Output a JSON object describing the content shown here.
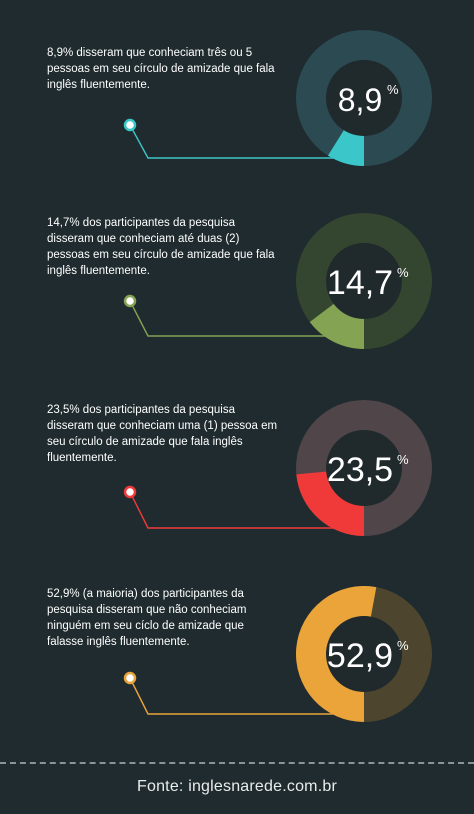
{
  "chart_data": [
    {
      "type": "pie",
      "value": 8.9,
      "label": "8,9",
      "unit": "%",
      "description": "8,9% disseram que conheciam três ou 5 pessoas em seu círculo de amizade que fala inglês fluentemente.",
      "colors": {
        "highlight": "#3bc7c9",
        "rest": "#2b4a52",
        "line": "#3bc7c9"
      }
    },
    {
      "type": "pie",
      "value": 14.7,
      "label": "14,7",
      "unit": "%",
      "description": "14,7% dos participantes da pesquisa disseram que conheciam até duas (2) pessoas em seu círculo de amizade que fala inglês fluentemente.",
      "colors": {
        "highlight": "#84a353",
        "rest": "#34462f",
        "line": "#84a353"
      }
    },
    {
      "type": "pie",
      "value": 23.5,
      "label": "23,5",
      "unit": "%",
      "description": "23,5% dos participantes da pesquisa disseram que conheciam uma (1) pessoa em seu círculo de amizade que fala inglês fluentemente.",
      "colors": {
        "highlight": "#f03a3a",
        "rest": "#504548",
        "line": "#f03a3a"
      }
    },
    {
      "type": "pie",
      "value": 52.9,
      "label": "52,9",
      "unit": "%",
      "description": "52,9% (a maioria) dos participantes da pesquisa disseram que não conheciam ninguém em seu cíclo de amizade que falasse inglês fluentemente.",
      "colors": {
        "highlight": "#eaa43a",
        "rest": "#4d452d",
        "line": "#eaa43a"
      }
    }
  ],
  "footer": {
    "source": "Fonte:  inglesnarede.com.br"
  },
  "colors": {
    "background": "#1f2b2e",
    "inner": "#20292c"
  }
}
